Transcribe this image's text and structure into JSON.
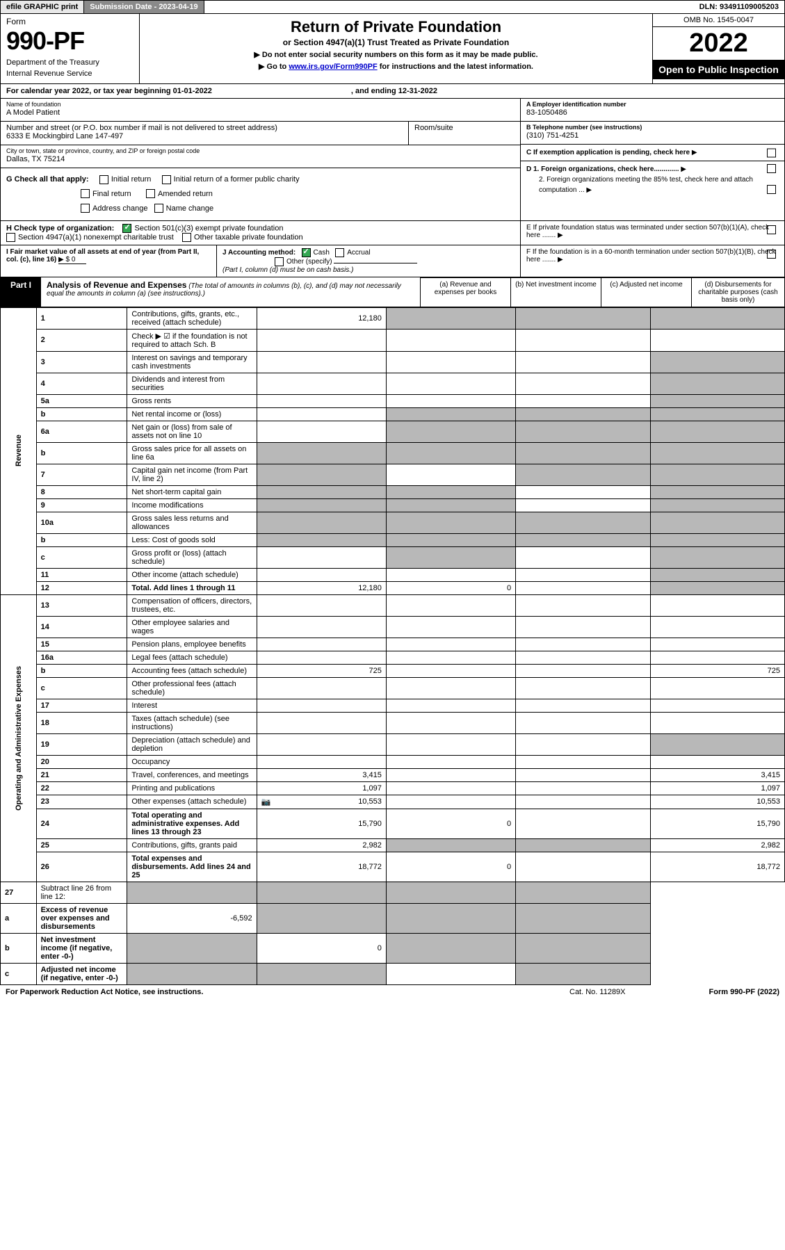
{
  "topbar": {
    "efile": "efile GRAPHIC print",
    "sub_label": "Submission Date - 2023-04-19",
    "dln": "DLN: 93491109005203"
  },
  "header": {
    "form_label": "Form",
    "form_no": "990-PF",
    "dept1": "Department of the Treasury",
    "dept2": "Internal Revenue Service",
    "title": "Return of Private Foundation",
    "subtitle": "or Section 4947(a)(1) Trust Treated as Private Foundation",
    "note1": "▶ Do not enter social security numbers on this form as it may be made public.",
    "note2_pre": "▶ Go to ",
    "note2_link": "www.irs.gov/Form990PF",
    "note2_post": " for instructions and the latest information.",
    "omb": "OMB No. 1545-0047",
    "year": "2022",
    "open": "Open to Public Inspection"
  },
  "calendar": {
    "text": "For calendar year 2022, or tax year beginning 01-01-2022",
    "ending": ", and ending 12-31-2022"
  },
  "entity": {
    "name_lbl": "Name of foundation",
    "name": "A Model Patient",
    "addr_lbl": "Number and street (or P.O. box number if mail is not delivered to street address)",
    "addr": "6333 E Mockingbird Lane 147-497",
    "room_lbl": "Room/suite",
    "city_lbl": "City or town, state or province, country, and ZIP or foreign postal code",
    "city": "Dallas, TX  75214",
    "a_lbl": "A Employer identification number",
    "ein": "83-1050486",
    "b_lbl": "B Telephone number (see instructions)",
    "phone": "(310) 751-4251",
    "c_lbl": "C If exemption application is pending, check here",
    "d1": "D 1. Foreign organizations, check here.............",
    "d2": "2. Foreign organizations meeting the 85% test, check here and attach computation ...",
    "e_lbl": "E  If private foundation status was terminated under section 507(b)(1)(A), check here .......",
    "f_lbl": "F  If the foundation is in a 60-month termination under section 507(b)(1)(B), check here ......."
  },
  "g": {
    "lbl": "G Check all that apply:",
    "opts": [
      "Initial return",
      "Initial return of a former public charity",
      "Final return",
      "Amended return",
      "Address change",
      "Name change"
    ]
  },
  "h": {
    "lbl": "H Check type of organization:",
    "opt1": "Section 501(c)(3) exempt private foundation",
    "opt2": "Section 4947(a)(1) nonexempt charitable trust",
    "opt3": "Other taxable private foundation"
  },
  "i": {
    "lbl": "I Fair market value of all assets at end of year (from Part II, col. (c), line 16)",
    "val": "▶ $  0"
  },
  "j": {
    "lbl": "J Accounting method:",
    "cash": "Cash",
    "accrual": "Accrual",
    "other": "Other (specify)",
    "note": "(Part I, column (d) must be on cash basis.)"
  },
  "part1": {
    "label": "Part I",
    "title": "Analysis of Revenue and Expenses",
    "note": "(The total of amounts in columns (b), (c), and (d) may not necessarily equal the amounts in column (a) (see instructions).)",
    "col_a": "(a)    Revenue and expenses per books",
    "col_b": "(b)    Net investment income",
    "col_c": "(c)    Adjusted net income",
    "col_d": "(d)    Disbursements for charitable purposes (cash basis only)"
  },
  "sections": {
    "revenue": "Revenue",
    "operating": "Operating and Administrative Expenses"
  },
  "rows": [
    {
      "n": "1",
      "d": "Contributions, gifts, grants, etc., received (attach schedule)",
      "a": "12,180",
      "b": "",
      "c": "",
      "dd": "",
      "shade_b": true,
      "shade_c": true,
      "shade_d": true
    },
    {
      "n": "2",
      "d": "Check ▶ ☑ if the foundation is not required to attach Sch. B",
      "nocols": true
    },
    {
      "n": "3",
      "d": "Interest on savings and temporary cash investments",
      "a": "",
      "b": "",
      "c": "",
      "dd": "",
      "shade_d": true
    },
    {
      "n": "4",
      "d": "Dividends and interest from securities",
      "a": "",
      "b": "",
      "c": "",
      "dd": "",
      "shade_d": true
    },
    {
      "n": "5a",
      "d": "Gross rents",
      "a": "",
      "b": "",
      "c": "",
      "dd": "",
      "shade_d": true
    },
    {
      "n": "b",
      "d": "Net rental income or (loss)",
      "a": "",
      "b": "",
      "c": "",
      "dd": "",
      "shade_a": false,
      "shade_b": true,
      "shade_c": true,
      "shade_d": true,
      "halfdesc": true
    },
    {
      "n": "6a",
      "d": "Net gain or (loss) from sale of assets not on line 10",
      "a": "",
      "b": "",
      "c": "",
      "dd": "",
      "shade_b": true,
      "shade_c": true,
      "shade_d": true
    },
    {
      "n": "b",
      "d": "Gross sales price for all assets on line 6a",
      "a": "",
      "b": "",
      "c": "",
      "dd": "",
      "shade_a": true,
      "shade_b": true,
      "shade_c": true,
      "shade_d": true,
      "halfdesc": true
    },
    {
      "n": "7",
      "d": "Capital gain net income (from Part IV, line 2)",
      "a": "",
      "b": "",
      "c": "",
      "dd": "",
      "shade_a": true,
      "shade_c": true,
      "shade_d": true
    },
    {
      "n": "8",
      "d": "Net short-term capital gain",
      "a": "",
      "b": "",
      "c": "",
      "dd": "",
      "shade_a": true,
      "shade_b": true,
      "shade_d": true
    },
    {
      "n": "9",
      "d": "Income modifications",
      "a": "",
      "b": "",
      "c": "",
      "dd": "",
      "shade_a": true,
      "shade_b": true,
      "shade_d": true
    },
    {
      "n": "10a",
      "d": "Gross sales less returns and allowances",
      "a": "",
      "b": "",
      "c": "",
      "dd": "",
      "shade_a": true,
      "shade_b": true,
      "shade_c": true,
      "shade_d": true,
      "halfdesc": true
    },
    {
      "n": "b",
      "d": "Less: Cost of goods sold",
      "a": "",
      "b": "",
      "c": "",
      "dd": "",
      "shade_a": true,
      "shade_b": true,
      "shade_c": true,
      "shade_d": true,
      "halfdesc": true
    },
    {
      "n": "c",
      "d": "Gross profit or (loss) (attach schedule)",
      "a": "",
      "b": "",
      "c": "",
      "dd": "",
      "shade_b": true,
      "shade_d": true
    },
    {
      "n": "11",
      "d": "Other income (attach schedule)",
      "a": "",
      "b": "",
      "c": "",
      "dd": "",
      "shade_d": true
    },
    {
      "n": "12",
      "d": "Total. Add lines 1 through 11",
      "a": "12,180",
      "b": "0",
      "c": "",
      "dd": "",
      "bold": true,
      "shade_d": true
    }
  ],
  "exp_rows": [
    {
      "n": "13",
      "d": "Compensation of officers, directors, trustees, etc.",
      "a": "",
      "b": "",
      "c": "",
      "dd": ""
    },
    {
      "n": "14",
      "d": "Other employee salaries and wages",
      "a": "",
      "b": "",
      "c": "",
      "dd": ""
    },
    {
      "n": "15",
      "d": "Pension plans, employee benefits",
      "a": "",
      "b": "",
      "c": "",
      "dd": ""
    },
    {
      "n": "16a",
      "d": "Legal fees (attach schedule)",
      "a": "",
      "b": "",
      "c": "",
      "dd": ""
    },
    {
      "n": "b",
      "d": "Accounting fees (attach schedule)",
      "a": "725",
      "b": "",
      "c": "",
      "dd": "725"
    },
    {
      "n": "c",
      "d": "Other professional fees (attach schedule)",
      "a": "",
      "b": "",
      "c": "",
      "dd": ""
    },
    {
      "n": "17",
      "d": "Interest",
      "a": "",
      "b": "",
      "c": "",
      "dd": ""
    },
    {
      "n": "18",
      "d": "Taxes (attach schedule) (see instructions)",
      "a": "",
      "b": "",
      "c": "",
      "dd": ""
    },
    {
      "n": "19",
      "d": "Depreciation (attach schedule) and depletion",
      "a": "",
      "b": "",
      "c": "",
      "dd": "",
      "shade_d": true
    },
    {
      "n": "20",
      "d": "Occupancy",
      "a": "",
      "b": "",
      "c": "",
      "dd": ""
    },
    {
      "n": "21",
      "d": "Travel, conferences, and meetings",
      "a": "3,415",
      "b": "",
      "c": "",
      "dd": "3,415"
    },
    {
      "n": "22",
      "d": "Printing and publications",
      "a": "1,097",
      "b": "",
      "c": "",
      "dd": "1,097"
    },
    {
      "n": "23",
      "d": "Other expenses (attach schedule)",
      "a": "10,553",
      "b": "",
      "c": "",
      "dd": "10,553",
      "icon": true
    },
    {
      "n": "24",
      "d": "Total operating and administrative expenses. Add lines 13 through 23",
      "a": "15,790",
      "b": "0",
      "c": "",
      "dd": "15,790",
      "bold": true
    },
    {
      "n": "25",
      "d": "Contributions, gifts, grants paid",
      "a": "2,982",
      "b": "",
      "c": "",
      "dd": "2,982",
      "shade_b": true,
      "shade_c": true
    },
    {
      "n": "26",
      "d": "Total expenses and disbursements. Add lines 24 and 25",
      "a": "18,772",
      "b": "0",
      "c": "",
      "dd": "18,772",
      "bold": true
    }
  ],
  "net_rows": [
    {
      "n": "27",
      "d": "Subtract line 26 from line 12:",
      "a": "",
      "b": "",
      "c": "",
      "dd": "",
      "shade_a": true,
      "shade_b": true,
      "shade_c": true,
      "shade_d": true
    },
    {
      "n": "a",
      "d": "Excess of revenue over expenses and disbursements",
      "a": "-6,592",
      "b": "",
      "c": "",
      "dd": "",
      "bold": true,
      "shade_b": true,
      "shade_c": true,
      "shade_d": true
    },
    {
      "n": "b",
      "d": "Net investment income (if negative, enter -0-)",
      "a": "",
      "b": "0",
      "c": "",
      "dd": "",
      "bold": true,
      "shade_a": true,
      "shade_c": true,
      "shade_d": true
    },
    {
      "n": "c",
      "d": "Adjusted net income (if negative, enter -0-)",
      "a": "",
      "b": "",
      "c": "",
      "dd": "",
      "bold": true,
      "shade_a": true,
      "shade_b": true,
      "shade_d": true
    }
  ],
  "footer": {
    "left": "For Paperwork Reduction Act Notice, see instructions.",
    "mid": "Cat. No. 11289X",
    "right": "Form 990-PF (2022)"
  },
  "colors": {
    "shade": "#b8b8b8",
    "link": "#0000cc",
    "check": "#34a853"
  }
}
